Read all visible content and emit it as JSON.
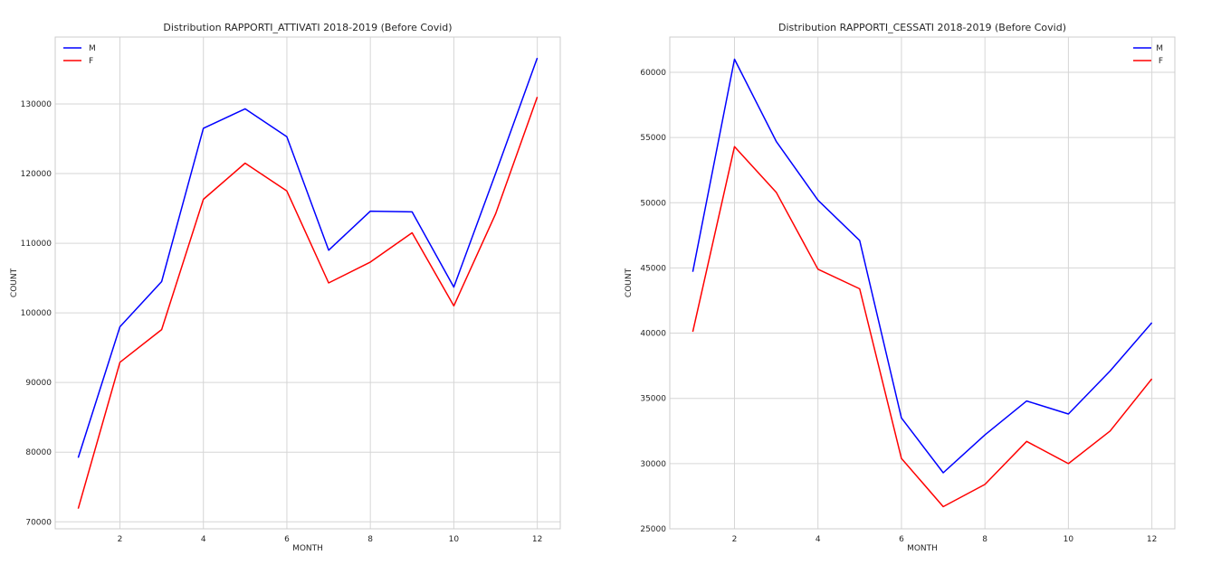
{
  "chart_data": [
    {
      "type": "line",
      "title": "Distribution RAPPORTI_ATTIVATI 2018-2019 (Before Covid)",
      "xlabel": "MONTH",
      "ylabel": "COUNT",
      "x": [
        1,
        2,
        3,
        4,
        5,
        6,
        7,
        8,
        9,
        10,
        11,
        12
      ],
      "xlim": [
        0.45,
        12.55
      ],
      "ylim": [
        69000,
        139600
      ],
      "xticks": [
        2,
        4,
        6,
        8,
        10,
        12
      ],
      "yticks": [
        70000,
        80000,
        90000,
        100000,
        110000,
        120000,
        130000
      ],
      "grid": true,
      "legend_position": "top-left",
      "series": [
        {
          "name": "M",
          "color": "#0000ff",
          "values": [
            79200,
            98000,
            104500,
            126500,
            129300,
            125300,
            109000,
            114600,
            114500,
            103700,
            120000,
            136600
          ]
        },
        {
          "name": "F",
          "color": "#ff0000",
          "values": [
            71900,
            92900,
            97600,
            116300,
            121500,
            117500,
            104300,
            107300,
            111500,
            101000,
            114200,
            131000
          ]
        }
      ]
    },
    {
      "type": "line",
      "title": "Distribution RAPPORTI_CESSATI 2018-2019 (Before Covid)",
      "xlabel": "MONTH",
      "ylabel": "COUNT",
      "x": [
        1,
        2,
        3,
        4,
        5,
        6,
        7,
        8,
        9,
        10,
        11,
        12
      ],
      "xlim": [
        0.45,
        12.55
      ],
      "ylim": [
        25000,
        62700
      ],
      "xticks": [
        2,
        4,
        6,
        8,
        10,
        12
      ],
      "yticks": [
        25000,
        30000,
        35000,
        40000,
        45000,
        50000,
        55000,
        60000
      ],
      "grid": true,
      "legend_position": "top-right",
      "series": [
        {
          "name": "M",
          "color": "#0000ff",
          "values": [
            44700,
            61000,
            54700,
            50200,
            47100,
            33500,
            29300,
            32200,
            34800,
            33800,
            37100,
            40800
          ]
        },
        {
          "name": "F",
          "color": "#ff0000",
          "values": [
            40100,
            54300,
            50800,
            44900,
            43400,
            30400,
            26700,
            28400,
            31700,
            30000,
            32500,
            36500
          ]
        }
      ]
    }
  ]
}
